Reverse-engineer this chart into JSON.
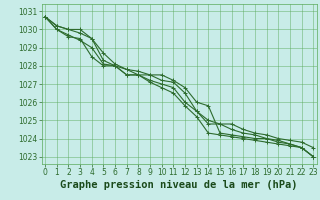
{
  "title": "Graphe pression niveau de la mer (hPa)",
  "bg_color": "#c8ece8",
  "grid_color": "#5aaa5a",
  "line_color": "#2d6b2d",
  "xlim": [
    -0.3,
    23.3
  ],
  "ylim": [
    1022.6,
    1031.4
  ],
  "yticks": [
    1023,
    1024,
    1025,
    1026,
    1027,
    1028,
    1029,
    1030,
    1031
  ],
  "xticks": [
    0,
    1,
    2,
    3,
    4,
    5,
    6,
    7,
    8,
    9,
    10,
    11,
    12,
    13,
    14,
    15,
    16,
    17,
    18,
    19,
    20,
    21,
    22,
    23
  ],
  "series": [
    [
      1030.7,
      1030.2,
      1030.0,
      1030.0,
      1029.5,
      1028.3,
      1028.0,
      1027.5,
      1027.5,
      1027.5,
      1027.5,
      1027.2,
      1026.8,
      1026.0,
      1025.8,
      1024.3,
      1024.2,
      1024.1,
      1024.0,
      1024.0,
      1023.8,
      1023.7,
      1023.5,
      1023.0
    ],
    [
      1030.7,
      1030.2,
      1030.0,
      1029.8,
      1029.5,
      1028.7,
      1028.1,
      1027.8,
      1027.7,
      1027.5,
      1027.2,
      1027.1,
      1026.5,
      1025.5,
      1025.0,
      1024.8,
      1024.5,
      1024.3,
      1024.2,
      1024.0,
      1023.9,
      1023.7,
      1023.5,
      1023.0
    ],
    [
      1030.7,
      1030.0,
      1029.6,
      1029.5,
      1028.5,
      1028.0,
      1028.0,
      1027.5,
      1027.5,
      1027.2,
      1027.0,
      1026.8,
      1026.0,
      1025.5,
      1024.8,
      1024.8,
      1024.8,
      1024.5,
      1024.3,
      1024.2,
      1024.0,
      1023.9,
      1023.8,
      1023.5
    ],
    [
      1030.7,
      1030.0,
      1029.7,
      1029.4,
      1029.0,
      1028.1,
      1028.0,
      1027.8,
      1027.5,
      1027.1,
      1026.8,
      1026.5,
      1025.8,
      1025.2,
      1024.3,
      1024.2,
      1024.1,
      1024.0,
      1023.9,
      1023.8,
      1023.7,
      1023.6,
      1023.5,
      1023.0
    ]
  ],
  "marker": "+",
  "marker_size": 3,
  "line_width": 0.8,
  "title_fontsize": 7.5,
  "tick_fontsize": 5.5,
  "title_color": "#1a4a1a",
  "xlabel_color": "#1a4a1a"
}
